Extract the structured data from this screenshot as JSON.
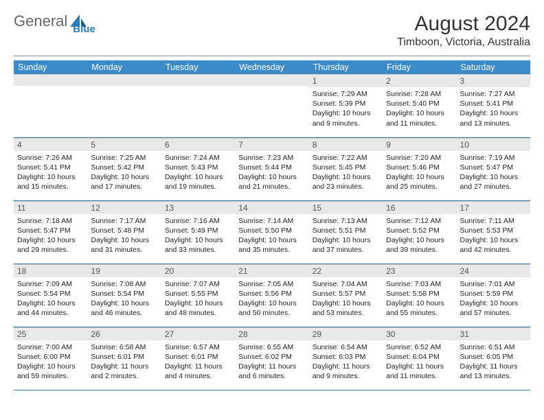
{
  "logo": {
    "text1": "General",
    "text2": "Blue",
    "icon_color": "#2b7bbf"
  },
  "title": "August 2024",
  "location": "Timboon, Victoria, Australia",
  "colors": {
    "header_bg": "#3b8bc9",
    "header_text": "#ffffff",
    "daynum_bg": "#e8e8e8",
    "row_border": "#2e6da4"
  },
  "weekdays": [
    "Sunday",
    "Monday",
    "Tuesday",
    "Wednesday",
    "Thursday",
    "Friday",
    "Saturday"
  ],
  "weeks": [
    [
      {
        "n": "",
        "lines": [
          "",
          "",
          ""
        ]
      },
      {
        "n": "",
        "lines": [
          "",
          "",
          ""
        ]
      },
      {
        "n": "",
        "lines": [
          "",
          "",
          ""
        ]
      },
      {
        "n": "",
        "lines": [
          "",
          "",
          ""
        ]
      },
      {
        "n": "1",
        "lines": [
          "Sunrise: 7:29 AM",
          "Sunset: 5:39 PM",
          "Daylight: 10 hours and 9 minutes."
        ]
      },
      {
        "n": "2",
        "lines": [
          "Sunrise: 7:28 AM",
          "Sunset: 5:40 PM",
          "Daylight: 10 hours and 11 minutes."
        ]
      },
      {
        "n": "3",
        "lines": [
          "Sunrise: 7:27 AM",
          "Sunset: 5:41 PM",
          "Daylight: 10 hours and 13 minutes."
        ]
      }
    ],
    [
      {
        "n": "4",
        "lines": [
          "Sunrise: 7:26 AM",
          "Sunset: 5:41 PM",
          "Daylight: 10 hours and 15 minutes."
        ]
      },
      {
        "n": "5",
        "lines": [
          "Sunrise: 7:25 AM",
          "Sunset: 5:42 PM",
          "Daylight: 10 hours and 17 minutes."
        ]
      },
      {
        "n": "6",
        "lines": [
          "Sunrise: 7:24 AM",
          "Sunset: 5:43 PM",
          "Daylight: 10 hours and 19 minutes."
        ]
      },
      {
        "n": "7",
        "lines": [
          "Sunrise: 7:23 AM",
          "Sunset: 5:44 PM",
          "Daylight: 10 hours and 21 minutes."
        ]
      },
      {
        "n": "8",
        "lines": [
          "Sunrise: 7:22 AM",
          "Sunset: 5:45 PM",
          "Daylight: 10 hours and 23 minutes."
        ]
      },
      {
        "n": "9",
        "lines": [
          "Sunrise: 7:20 AM",
          "Sunset: 5:46 PM",
          "Daylight: 10 hours and 25 minutes."
        ]
      },
      {
        "n": "10",
        "lines": [
          "Sunrise: 7:19 AM",
          "Sunset: 5:47 PM",
          "Daylight: 10 hours and 27 minutes."
        ]
      }
    ],
    [
      {
        "n": "11",
        "lines": [
          "Sunrise: 7:18 AM",
          "Sunset: 5:47 PM",
          "Daylight: 10 hours and 29 minutes."
        ]
      },
      {
        "n": "12",
        "lines": [
          "Sunrise: 7:17 AM",
          "Sunset: 5:48 PM",
          "Daylight: 10 hours and 31 minutes."
        ]
      },
      {
        "n": "13",
        "lines": [
          "Sunrise: 7:16 AM",
          "Sunset: 5:49 PM",
          "Daylight: 10 hours and 33 minutes."
        ]
      },
      {
        "n": "14",
        "lines": [
          "Sunrise: 7:14 AM",
          "Sunset: 5:50 PM",
          "Daylight: 10 hours and 35 minutes."
        ]
      },
      {
        "n": "15",
        "lines": [
          "Sunrise: 7:13 AM",
          "Sunset: 5:51 PM",
          "Daylight: 10 hours and 37 minutes."
        ]
      },
      {
        "n": "16",
        "lines": [
          "Sunrise: 7:12 AM",
          "Sunset: 5:52 PM",
          "Daylight: 10 hours and 39 minutes."
        ]
      },
      {
        "n": "17",
        "lines": [
          "Sunrise: 7:11 AM",
          "Sunset: 5:53 PM",
          "Daylight: 10 hours and 42 minutes."
        ]
      }
    ],
    [
      {
        "n": "18",
        "lines": [
          "Sunrise: 7:09 AM",
          "Sunset: 5:54 PM",
          "Daylight: 10 hours and 44 minutes."
        ]
      },
      {
        "n": "19",
        "lines": [
          "Sunrise: 7:08 AM",
          "Sunset: 5:54 PM",
          "Daylight: 10 hours and 46 minutes."
        ]
      },
      {
        "n": "20",
        "lines": [
          "Sunrise: 7:07 AM",
          "Sunset: 5:55 PM",
          "Daylight: 10 hours and 48 minutes."
        ]
      },
      {
        "n": "21",
        "lines": [
          "Sunrise: 7:05 AM",
          "Sunset: 5:56 PM",
          "Daylight: 10 hours and 50 minutes."
        ]
      },
      {
        "n": "22",
        "lines": [
          "Sunrise: 7:04 AM",
          "Sunset: 5:57 PM",
          "Daylight: 10 hours and 53 minutes."
        ]
      },
      {
        "n": "23",
        "lines": [
          "Sunrise: 7:03 AM",
          "Sunset: 5:58 PM",
          "Daylight: 10 hours and 55 minutes."
        ]
      },
      {
        "n": "24",
        "lines": [
          "Sunrise: 7:01 AM",
          "Sunset: 5:59 PM",
          "Daylight: 10 hours and 57 minutes."
        ]
      }
    ],
    [
      {
        "n": "25",
        "lines": [
          "Sunrise: 7:00 AM",
          "Sunset: 6:00 PM",
          "Daylight: 10 hours and 59 minutes."
        ]
      },
      {
        "n": "26",
        "lines": [
          "Sunrise: 6:58 AM",
          "Sunset: 6:01 PM",
          "Daylight: 11 hours and 2 minutes."
        ]
      },
      {
        "n": "27",
        "lines": [
          "Sunrise: 6:57 AM",
          "Sunset: 6:01 PM",
          "Daylight: 11 hours and 4 minutes."
        ]
      },
      {
        "n": "28",
        "lines": [
          "Sunrise: 6:55 AM",
          "Sunset: 6:02 PM",
          "Daylight: 11 hours and 6 minutes."
        ]
      },
      {
        "n": "29",
        "lines": [
          "Sunrise: 6:54 AM",
          "Sunset: 6:03 PM",
          "Daylight: 11 hours and 9 minutes."
        ]
      },
      {
        "n": "30",
        "lines": [
          "Sunrise: 6:52 AM",
          "Sunset: 6:04 PM",
          "Daylight: 11 hours and 11 minutes."
        ]
      },
      {
        "n": "31",
        "lines": [
          "Sunrise: 6:51 AM",
          "Sunset: 6:05 PM",
          "Daylight: 11 hours and 13 minutes."
        ]
      }
    ]
  ]
}
